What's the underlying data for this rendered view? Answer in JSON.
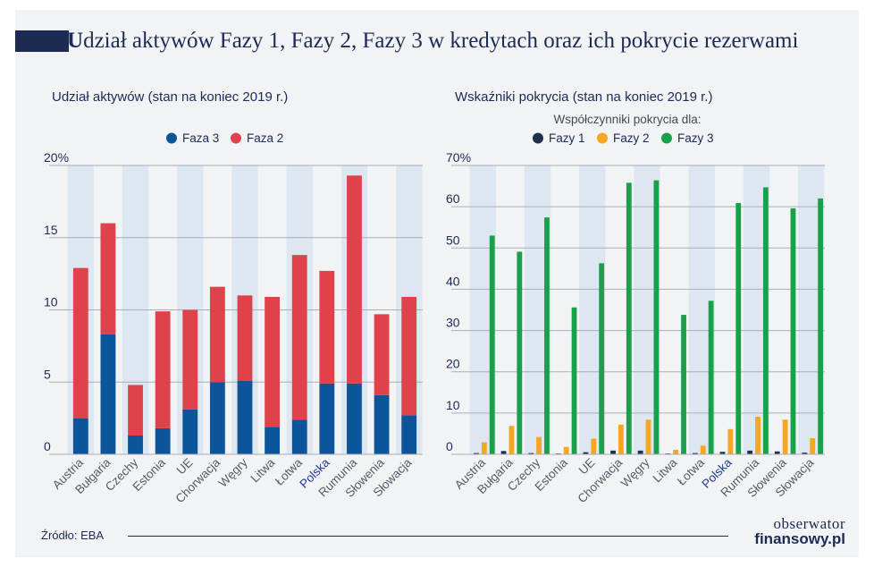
{
  "header": {
    "title_initial": "U",
    "title_rest": "dział aktywów Fazy 1, Fazy 2, Fazy 3 w kredytach oraz ich pokrycie rezerwami"
  },
  "footer": {
    "source": "Źródło: EBA",
    "logo_line1": "obserwator",
    "logo_line2": "finansowy.pl"
  },
  "chart_data": [
    {
      "type": "bar",
      "stacked": true,
      "title": "Udział aktywów (stan na koniec 2019 r.)",
      "legend_title": "",
      "categories": [
        "Austria",
        "Bułgaria",
        "Czechy",
        "Estonia",
        "UE",
        "Chorwacja",
        "Węgry",
        "Litwa",
        "Łotwa",
        "Polska",
        "Rumunia",
        "Słowenia",
        "Słowacja"
      ],
      "highlight_category": "Polska",
      "series": [
        {
          "name": "Faza 3",
          "color": "#0d559b",
          "values": [
            2.5,
            8.3,
            1.3,
            1.8,
            3.1,
            5.0,
            5.1,
            1.9,
            2.4,
            4.9,
            4.9,
            4.1,
            2.7
          ]
        },
        {
          "name": "Faza 2",
          "color": "#e0424b",
          "values": [
            10.4,
            7.7,
            3.5,
            8.1,
            6.9,
            6.6,
            5.9,
            9.0,
            11.4,
            7.8,
            14.4,
            5.6,
            8.2
          ]
        }
      ],
      "ylim": [
        0,
        20
      ],
      "yticks": [
        0,
        5,
        10,
        15,
        20
      ],
      "ytick_labels": [
        "0",
        "5",
        "10",
        "15",
        "20%"
      ],
      "legend_position": "top"
    },
    {
      "type": "bar",
      "stacked": false,
      "title": "Wskaźniki pokrycia (stan na koniec 2019 r.)",
      "legend_title": "Współczynniki pokrycia dla:",
      "categories": [
        "Austria",
        "Bułgaria",
        "Czechy",
        "Estonia",
        "UE",
        "Chorwacja",
        "Węgry",
        "Litwa",
        "Łotwa",
        "Polska",
        "Rumunia",
        "Słowenia",
        "Słowacja"
      ],
      "highlight_category": "Polska",
      "series": [
        {
          "name": "Fazy 1",
          "color": "#1f2f4e",
          "values": [
            0.3,
            0.8,
            0.3,
            0.2,
            0.5,
            0.9,
            0.9,
            0.2,
            0.3,
            0.6,
            0.9,
            0.7,
            0.4
          ]
        },
        {
          "name": "Fazy 2",
          "color": "#f5a623",
          "values": [
            2.9,
            6.9,
            4.2,
            1.8,
            3.8,
            7.2,
            8.4,
            1.1,
            2.1,
            6.1,
            9.1,
            8.4,
            3.9
          ]
        },
        {
          "name": "Fazy 3",
          "color": "#1aa04a",
          "values": [
            53.0,
            49.1,
            57.4,
            35.6,
            46.3,
            65.8,
            66.4,
            33.8,
            37.2,
            60.9,
            64.7,
            59.6,
            62.0
          ]
        }
      ],
      "ylim": [
        0,
        70
      ],
      "yticks": [
        0,
        10,
        20,
        30,
        40,
        50,
        60,
        70
      ],
      "ytick_labels": [
        "0",
        "10",
        "20",
        "30",
        "40",
        "50",
        "60",
        "70%"
      ],
      "legend_position": "top"
    }
  ]
}
